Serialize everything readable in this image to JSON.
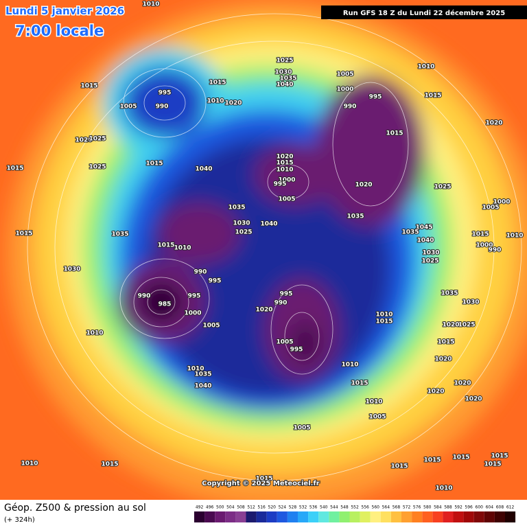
{
  "header": {
    "date": "Lundi 5 janvier 2026",
    "time": "7:00 locale",
    "run": "Run GFS 18 Z du Lundi 22 décembre 2025"
  },
  "map": {
    "copyright": "Copyright © 2025 Meteociel.fr",
    "pressure_labels": [
      "1010",
      "1015",
      "995",
      "1005",
      "990",
      "1015",
      "1010",
      "1020",
      "1025",
      "1030",
      "1035",
      "1040",
      "1005",
      "1000",
      "990",
      "995",
      "1010",
      "1015",
      "1020",
      "1015",
      "1020",
      "1015",
      "1010",
      "1000",
      "995",
      "1005",
      "1020",
      "1025",
      "1035",
      "1040",
      "1015",
      "1020",
      "1025",
      "1025",
      "1015",
      "1035",
      "1030",
      "1025",
      "1040",
      "1035",
      "1015",
      "1010",
      "990",
      "995",
      "995",
      "1000",
      "990",
      "985",
      "1005",
      "1010",
      "1015",
      "1030",
      "1020",
      "995",
      "990",
      "1005",
      "995",
      "1010",
      "1015",
      "1010",
      "1005",
      "1005",
      "1010",
      "1015",
      "1035",
      "1030",
      "1025",
      "1020",
      "1015",
      "1020",
      "1020",
      "1020",
      "1020",
      "1045",
      "1035",
      "1040",
      "1030",
      "1025",
      "1005",
      "1000",
      "1015",
      "1010",
      "1000",
      "990",
      "1010",
      "1035",
      "1040",
      "1010",
      "1015",
      "1015",
      "1015",
      "1015",
      "1015",
      "1015",
      "1015",
      "1010"
    ]
  },
  "footer": {
    "title": "Géop. Z500 & pression au sol",
    "lead": "(+ 324h)",
    "scale": {
      "labels": [
        "492",
        "496",
        "500",
        "504",
        "508",
        "512",
        "516",
        "520",
        "524",
        "528",
        "532",
        "536",
        "540",
        "544",
        "548",
        "552",
        "556",
        "560",
        "564",
        "568",
        "572",
        "576",
        "580",
        "584",
        "588",
        "592",
        "596",
        "600",
        "604",
        "608",
        "612"
      ],
      "colors": [
        "#2b0030",
        "#4a0a50",
        "#6a1a70",
        "#7c2d86",
        "#8a3f94",
        "#1c1a6e",
        "#1a2a9a",
        "#1c3cc4",
        "#1e58e0",
        "#2080f0",
        "#28a8f8",
        "#3cd0f8",
        "#60e8e0",
        "#70f0a0",
        "#90f070",
        "#b8f060",
        "#e0f060",
        "#fff080",
        "#ffe060",
        "#ffc040",
        "#ffa030",
        "#ff8020",
        "#ff6020",
        "#f84020",
        "#e02020",
        "#c01010",
        "#a00808",
        "#800808",
        "#600404",
        "#400202",
        "#200000"
      ]
    }
  }
}
